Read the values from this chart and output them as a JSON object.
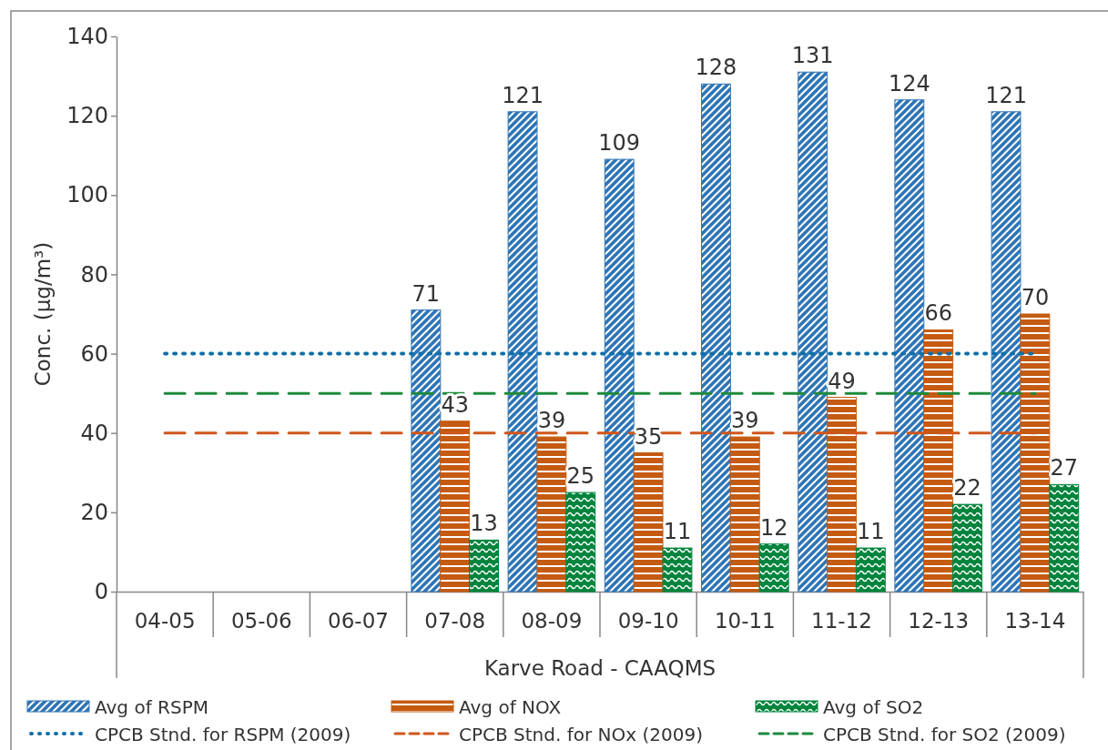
{
  "chart_data": {
    "type": "bar",
    "xlabel": "Karve Road - CAAQMS",
    "ylabel": "Conc. (µg/m³)",
    "categories": [
      "04-05",
      "05-06",
      "06-07",
      "07-08",
      "08-09",
      "09-10",
      "10-11",
      "11-12",
      "12-13",
      "13-14"
    ],
    "series": [
      {
        "name": "Avg of RSPM",
        "color": "#2e75b6",
        "values": [
          null,
          null,
          null,
          71,
          121,
          109,
          128,
          131,
          124,
          121
        ],
        "value_labels": [
          null,
          null,
          null,
          "71",
          "121",
          "109",
          "128",
          "131",
          "124",
          "121"
        ]
      },
      {
        "name": "Avg of NOX",
        "color": "#c55a11",
        "values": [
          null,
          null,
          null,
          43,
          39,
          35,
          39,
          49,
          66,
          70
        ],
        "value_labels": [
          null,
          null,
          null,
          "43",
          "39",
          "35",
          "39",
          "49",
          "66",
          "70"
        ]
      },
      {
        "name": "Avg of SO2",
        "color": "#00843d",
        "values": [
          null,
          null,
          null,
          13,
          25,
          11,
          12,
          11,
          22,
          27
        ],
        "value_labels": [
          null,
          null,
          null,
          "13",
          "25",
          "11",
          "12",
          "11",
          "22",
          "27"
        ]
      },
      {
        "name": "CPCB Stnd. for RSPM (2009)",
        "type": "line",
        "line_style": "dotted",
        "color": "#0e6fa8",
        "values": [
          60,
          60,
          60,
          60,
          60,
          60,
          60,
          60,
          60,
          60
        ]
      },
      {
        "name": "CPCB Stnd. for NOx (2009)",
        "type": "line",
        "line_style": "dashed",
        "color": "#d0561b",
        "values": [
          40,
          40,
          40,
          40,
          40,
          40,
          40,
          40,
          40,
          40
        ]
      },
      {
        "name": "CPCB Stnd. for SO2 (2009)",
        "type": "line",
        "line_style": "dashed",
        "color": "#1e8a3c",
        "values": [
          50,
          50,
          50,
          50,
          50,
          50,
          50,
          50,
          50,
          50
        ]
      }
    ],
    "ylim": [
      0,
      140
    ],
    "yticks": [
      0,
      20,
      40,
      60,
      80,
      100,
      120,
      140
    ],
    "grid": false,
    "legend": "bottom"
  }
}
